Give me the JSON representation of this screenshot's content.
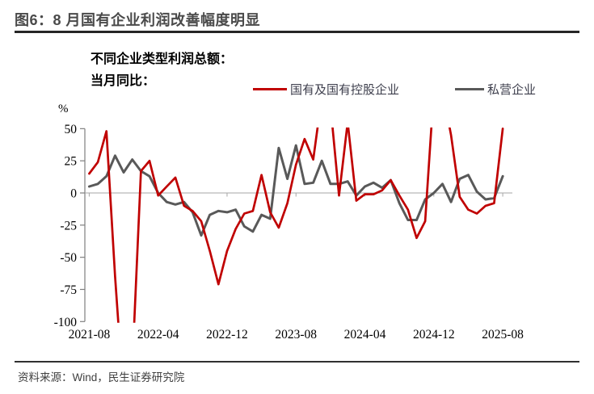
{
  "figure": {
    "title": "图6：8 月国有企业利润改善幅度明显",
    "source": "资料来源：Wind，民生证券研究院"
  },
  "annotation": {
    "line1": "不同企业类型利润总额：",
    "line2": "当月同比："
  },
  "colors": {
    "soe_line": "#c00000",
    "private_line": "#595959",
    "axis": "#7f7f7f",
    "zero_line": "#a6a6a6"
  },
  "chart_data": {
    "type": "line",
    "unit_label": "%",
    "ylim": [
      -100,
      50
    ],
    "y_ticks": [
      50,
      25,
      0,
      -25,
      -50,
      -75,
      -100
    ],
    "grid": "off",
    "legend_position": "top",
    "x_tick_labels": [
      "2021-08",
      "2022-04",
      "2022-12",
      "2023-08",
      "2024-04",
      "2024-12",
      "2025-08"
    ],
    "x_tick_indices": [
      0,
      8,
      16,
      24,
      32,
      40,
      48
    ],
    "x": [
      "2021-08",
      "2021-09",
      "2021-10",
      "2021-11",
      "2021-12",
      "2022-01",
      "2022-02",
      "2022-03",
      "2022-04",
      "2022-05",
      "2022-06",
      "2022-07",
      "2022-08",
      "2022-09",
      "2022-10",
      "2022-11",
      "2022-12",
      "2023-01",
      "2023-02",
      "2023-03",
      "2023-04",
      "2023-05",
      "2023-06",
      "2023-07",
      "2023-08",
      "2023-09",
      "2023-10",
      "2023-11",
      "2023-12",
      "2024-01",
      "2024-02",
      "2024-03",
      "2024-04",
      "2024-05",
      "2024-06",
      "2024-07",
      "2024-08",
      "2024-09",
      "2024-10",
      "2024-11",
      "2024-12",
      "2025-01",
      "2025-02",
      "2025-03",
      "2025-04",
      "2025-05",
      "2025-06",
      "2025-07",
      "2025-08"
    ],
    "series": [
      {
        "name": "国有及国有控股企业",
        "color": "#c00000",
        "values": [
          15,
          24,
          48,
          -65,
          -160,
          -135,
          17,
          25,
          -2,
          5,
          12,
          -10,
          -14,
          -22,
          -45,
          -71,
          -45,
          -28,
          -16,
          -14,
          14,
          -15,
          -27,
          -8,
          22,
          42,
          26,
          75,
          68,
          -2,
          55,
          -6,
          -1,
          -1,
          2,
          10,
          -2,
          -13,
          -35,
          -22,
          80,
          80,
          45,
          -3,
          -13,
          -16,
          -10,
          -8,
          50
        ]
      },
      {
        "name": "私营企业",
        "color": "#595959",
        "values": [
          5,
          7,
          13,
          29,
          16,
          26,
          17,
          13,
          0,
          -7,
          -9,
          -7,
          -15,
          -33,
          -17,
          -14,
          -15,
          -13,
          -26,
          -30,
          -17,
          -20,
          35,
          11,
          37,
          7,
          8,
          25,
          7,
          7,
          9,
          -2,
          5,
          8,
          4,
          10,
          -8,
          -21,
          -21,
          -5,
          0,
          7,
          -7,
          11,
          14,
          1,
          -5,
          -4,
          13
        ]
      }
    ]
  }
}
